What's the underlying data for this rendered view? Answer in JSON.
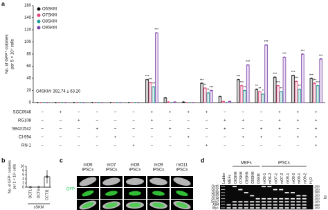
{
  "panel_labels": [
    "a",
    "b",
    "c",
    "d"
  ],
  "chart_data": [
    {
      "type": "bar",
      "ylabel": [
        "No. of GFP⁺ colonies",
        "per 5 × 10⁴ cells"
      ],
      "ylim": [
        0,
        160
      ],
      "yticks": [
        0,
        20,
        40,
        60,
        80,
        100,
        120,
        140,
        160
      ],
      "annotation": "O4SKM: 392.74 ± 63.20",
      "group_count": 16,
      "series": [
        {
          "name": "O6SKM",
          "color": "#111111",
          "values": [
            0,
            0,
            0,
            0,
            0,
            0,
            38,
            8,
            1,
            32,
            10,
            38,
            22,
            42,
            45,
            40
          ],
          "significance": [
            null,
            null,
            null,
            null,
            null,
            null,
            "***",
            null,
            null,
            "***",
            null,
            "***",
            "**",
            "***",
            "***",
            "***"
          ]
        },
        {
          "name": "O7SKM",
          "color": "#e0457b",
          "values": [
            0,
            0,
            0,
            0,
            0,
            0,
            33,
            1,
            0,
            24,
            2,
            28,
            18,
            28,
            35,
            32
          ],
          "significance": [
            null,
            null,
            null,
            null,
            null,
            null,
            "***",
            null,
            null,
            "**",
            null,
            "***",
            "**",
            "***",
            "***",
            "***"
          ]
        },
        {
          "name": "O8SKM",
          "color": "#1f9e95",
          "values": [
            0,
            0,
            0,
            0,
            0,
            0,
            26,
            0,
            0,
            16,
            0,
            20,
            14,
            18,
            22,
            28
          ],
          "significance": [
            null,
            null,
            null,
            null,
            null,
            null,
            "***",
            null,
            null,
            "**",
            null,
            "**",
            "*",
            "**",
            "**",
            "***"
          ]
        },
        {
          "name": "O9SKM",
          "color": "#7b3fa8",
          "values": [
            0,
            0,
            0,
            0,
            0,
            0,
            115,
            1,
            0,
            20,
            2,
            62,
            95,
            75,
            80,
            72
          ],
          "significance": [
            null,
            null,
            null,
            null,
            null,
            null,
            "***",
            null,
            null,
            "***",
            null,
            "***",
            "***",
            "***",
            "***",
            "***"
          ]
        }
      ],
      "treatments": [
        {
          "name": "SGC0946",
          "signs": [
            "–",
            "+",
            "–",
            "–",
            "–",
            "–",
            "+",
            "+",
            "+",
            "+",
            "–",
            "–",
            "–",
            "+",
            "+",
            "+"
          ]
        },
        {
          "name": "RG108",
          "signs": [
            "–",
            "–",
            "+",
            "–",
            "–",
            "–",
            "+",
            "–",
            "–",
            "–",
            "+",
            "+",
            "–",
            "+",
            "+",
            "+"
          ]
        },
        {
          "name": "SB431542",
          "signs": [
            "–",
            "–",
            "–",
            "+",
            "–",
            "–",
            "–",
            "+",
            "–",
            "–",
            "+",
            "–",
            "+",
            "+",
            "–",
            "+"
          ]
        },
        {
          "name": "CI-994",
          "signs": [
            "–",
            "–",
            "–",
            "–",
            "+",
            "–",
            "–",
            "–",
            "+",
            "–",
            "–",
            "+",
            "+",
            "–",
            "+",
            "+"
          ]
        },
        {
          "name": "RN-1",
          "signs": [
            "–",
            "–",
            "–",
            "–",
            "–",
            "+",
            "–",
            "–",
            "–",
            "+",
            "–",
            "–",
            "–",
            "–",
            "–",
            "+"
          ]
        }
      ]
    },
    {
      "type": "bar",
      "ylabel": [
        "No. of GFP⁺ colonies",
        "per 1 × 10⁴ cells"
      ],
      "categories": [
        "OCT1",
        "OCT6",
        "OCT11"
      ],
      "values": [
        0,
        0,
        5
      ],
      "errors": [
        0,
        0,
        3.2
      ],
      "group": "sSKM",
      "color": "#ffffff",
      "ylim": [
        0,
        10
      ],
      "yticks": [
        0,
        2,
        4,
        6,
        8,
        10
      ]
    }
  ],
  "images": {
    "columns": [
      [
        "mO6",
        "iPSCs"
      ],
      [
        "mO7",
        "iPSCs"
      ],
      [
        "mO8",
        "iPSCs"
      ],
      [
        "mO9",
        "iPSCs"
      ],
      [
        "mO11",
        "iPSCs"
      ]
    ],
    "row_label": "GFP"
  },
  "gel": {
    "groups": [
      {
        "label": "MEFs",
        "first": 2,
        "last": 6
      },
      {
        "label": "iPSCs",
        "first": 7,
        "last": 14
      }
    ],
    "lanes": [
      "Ladder",
      "MEFs",
      "O6SKM",
      "O7SKM",
      "O8SKM",
      "O9SKM",
      "OSKM",
      "mO6-1",
      "mO6-2",
      "mO7-1",
      "mO7-2",
      "mO8-1",
      "mO8-2",
      "mO9-1",
      "mO9-2",
      "H₂O"
    ],
    "rows": [
      {
        "gene": "Oct6",
        "size": "200",
        "bands": [
          0,
          0,
          1,
          0,
          0,
          0,
          0,
          1,
          1,
          0,
          0,
          0,
          0,
          0,
          0,
          0
        ]
      },
      {
        "gene": "Oct7",
        "size": "100",
        "bands": [
          0,
          0,
          0,
          1,
          0,
          0,
          0,
          0,
          0,
          1,
          1,
          0,
          0,
          0,
          0,
          0
        ]
      },
      {
        "gene": "Oct8",
        "size": "200",
        "bands": [
          0,
          0,
          0,
          0,
          1,
          0,
          0,
          0,
          0,
          0,
          0,
          1,
          1,
          0,
          0,
          0
        ]
      },
      {
        "gene": "Oct9",
        "size": "100",
        "bands": [
          0,
          0,
          0,
          0,
          0,
          1,
          0,
          0,
          0,
          0,
          0,
          0,
          0,
          1,
          1,
          0
        ]
      },
      {
        "gene": "Oct4",
        "size": "200",
        "bands": [
          0,
          0,
          0,
          0,
          0,
          0,
          1,
          1,
          1,
          1,
          1,
          1,
          1,
          1,
          1,
          0
        ]
      },
      {
        "gene": "Sox2",
        "size": "100",
        "bands": [
          0,
          0,
          1,
          1,
          1,
          1,
          1,
          1,
          1,
          1,
          1,
          1,
          1,
          1,
          1,
          0
        ]
      },
      {
        "gene": "Klf4",
        "size": "200",
        "bands": [
          0,
          1,
          1,
          1,
          1,
          1,
          1,
          1,
          1,
          1,
          1,
          1,
          1,
          1,
          1,
          0
        ]
      },
      {
        "gene": "Myc",
        "size": "100",
        "bands": [
          0,
          1,
          1,
          1,
          1,
          1,
          1,
          1,
          1,
          1,
          1,
          1,
          1,
          1,
          1,
          0
        ]
      }
    ],
    "unit": "bp"
  }
}
